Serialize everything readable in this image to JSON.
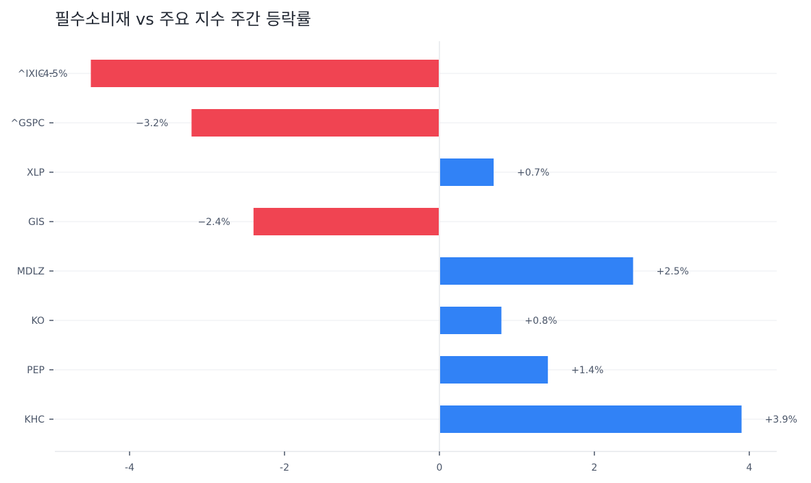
{
  "chart_data": {
    "type": "bar",
    "orientation": "horizontal",
    "title": "필수소비재 vs 주요 지수 주간 등락률",
    "xlabel": "",
    "ylabel": "",
    "xlim": [
      -5,
      4.35
    ],
    "x_ticks": [
      -4,
      -2,
      0,
      2,
      4
    ],
    "x_tick_labels": [
      "-4",
      "-2",
      "0",
      "2",
      "4"
    ],
    "categories": [
      "^IXIC",
      "^GSPC",
      "XLP",
      "GIS",
      "MDLZ",
      "KO",
      "PEP",
      "KHC"
    ],
    "values": [
      -4.5,
      -3.2,
      0.7,
      -2.4,
      2.5,
      0.8,
      1.4,
      3.9
    ],
    "value_labels": [
      "-4.5%",
      "−3.2%",
      "+0.7%",
      "−2.4%",
      "+2.5%",
      "+0.8%",
      "+1.4%",
      "+3.9%"
    ],
    "grid": true,
    "colors": {
      "positive": "#3182f6",
      "negative": "#f04452",
      "grid": "#f2f4f6",
      "axis": "#e5e8eb",
      "zero_line": "#e5e8eb"
    }
  }
}
